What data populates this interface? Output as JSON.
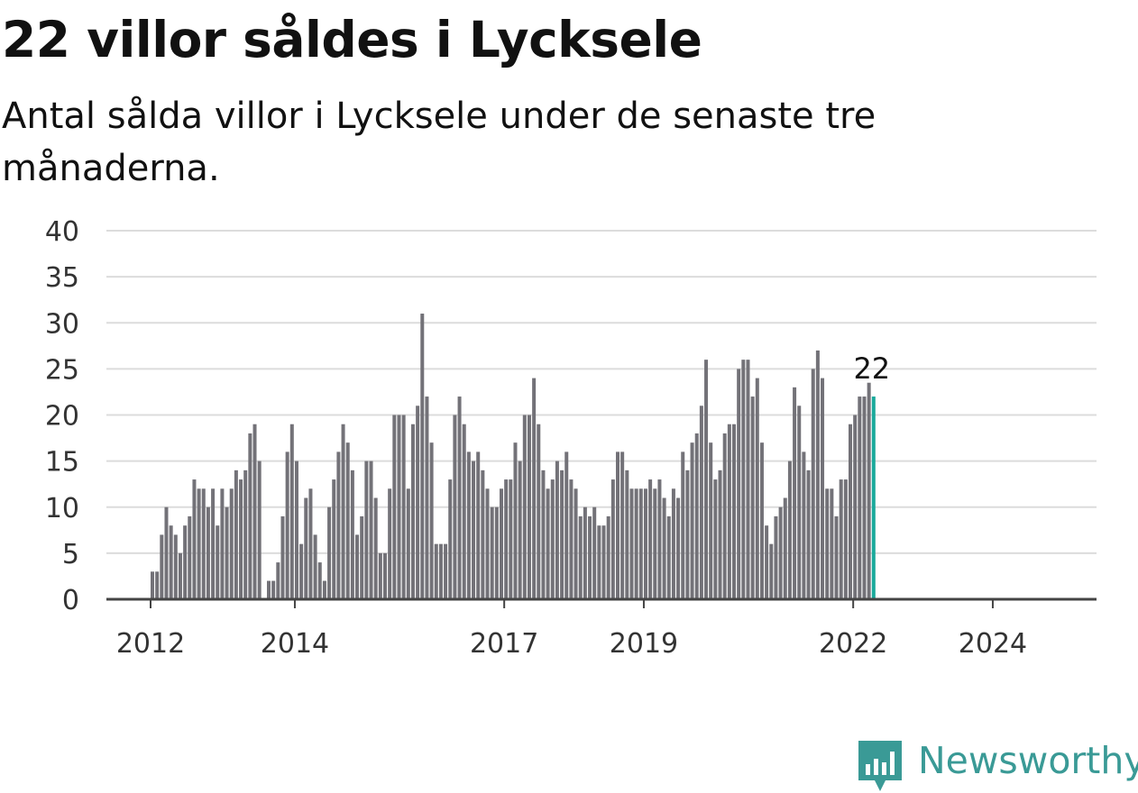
{
  "header": {
    "title": "22 villor såldes i Lycksele",
    "subtitle": "Antal sålda villor i Lycksele under de senaste tre månaderna."
  },
  "brand": {
    "name": "Newsworthy",
    "icon": "bar-chart-badge-icon",
    "color": "#3a9a96"
  },
  "colors": {
    "bar": "#737278",
    "highlight": "#1aa99b",
    "grid": "#dcdcdc",
    "axis": "#444444",
    "text": "#333333"
  },
  "chart_data": {
    "type": "bar",
    "title": "22 villor såldes i Lycksele",
    "subtitle": "Antal sålda villor i Lycksele under de senaste tre månaderna.",
    "ylim": [
      0,
      40
    ],
    "yticks": [
      0,
      5,
      10,
      15,
      20,
      25,
      30,
      35,
      40
    ],
    "grid": true,
    "x_tick_labels": [
      "2012",
      "2014",
      "2017",
      "2019",
      "2022",
      "2024"
    ],
    "x_tick_bar_index": [
      0,
      31,
      76,
      106,
      151,
      181
    ],
    "highlight_label": "22",
    "values": [
      3,
      3,
      7,
      10,
      8,
      7,
      5,
      8,
      9,
      13,
      12,
      12,
      10,
      12,
      8,
      12,
      10,
      12,
      14,
      13,
      14,
      18,
      19,
      15,
      0,
      2,
      2,
      4,
      9,
      16,
      19,
      15,
      6,
      11,
      12,
      7,
      4,
      2,
      10,
      13,
      16,
      19,
      17,
      14,
      7,
      9,
      15,
      15,
      11,
      5,
      5,
      12,
      20,
      20,
      20,
      12,
      19,
      21,
      31,
      22,
      17,
      6,
      6,
      6,
      13,
      20,
      22,
      19,
      16,
      15,
      16,
      14,
      12,
      10,
      10,
      12,
      13,
      13,
      17,
      15,
      20,
      20,
      24,
      19,
      14,
      12,
      13,
      15,
      14,
      16,
      13,
      12,
      9,
      10,
      9,
      10,
      8,
      8,
      9,
      13,
      16,
      16,
      14,
      12,
      12,
      12,
      12,
      13,
      12,
      13,
      11,
      9,
      12,
      11,
      16,
      14,
      17,
      18,
      21,
      26,
      17,
      13,
      14,
      18,
      19,
      19,
      25,
      26,
      26,
      22,
      24,
      17,
      8,
      6,
      9,
      10,
      11,
      15,
      23,
      21,
      16,
      14,
      25,
      27,
      24,
      12,
      12,
      9,
      13,
      13,
      19,
      20,
      22,
      22,
      23.5,
      22
    ]
  }
}
